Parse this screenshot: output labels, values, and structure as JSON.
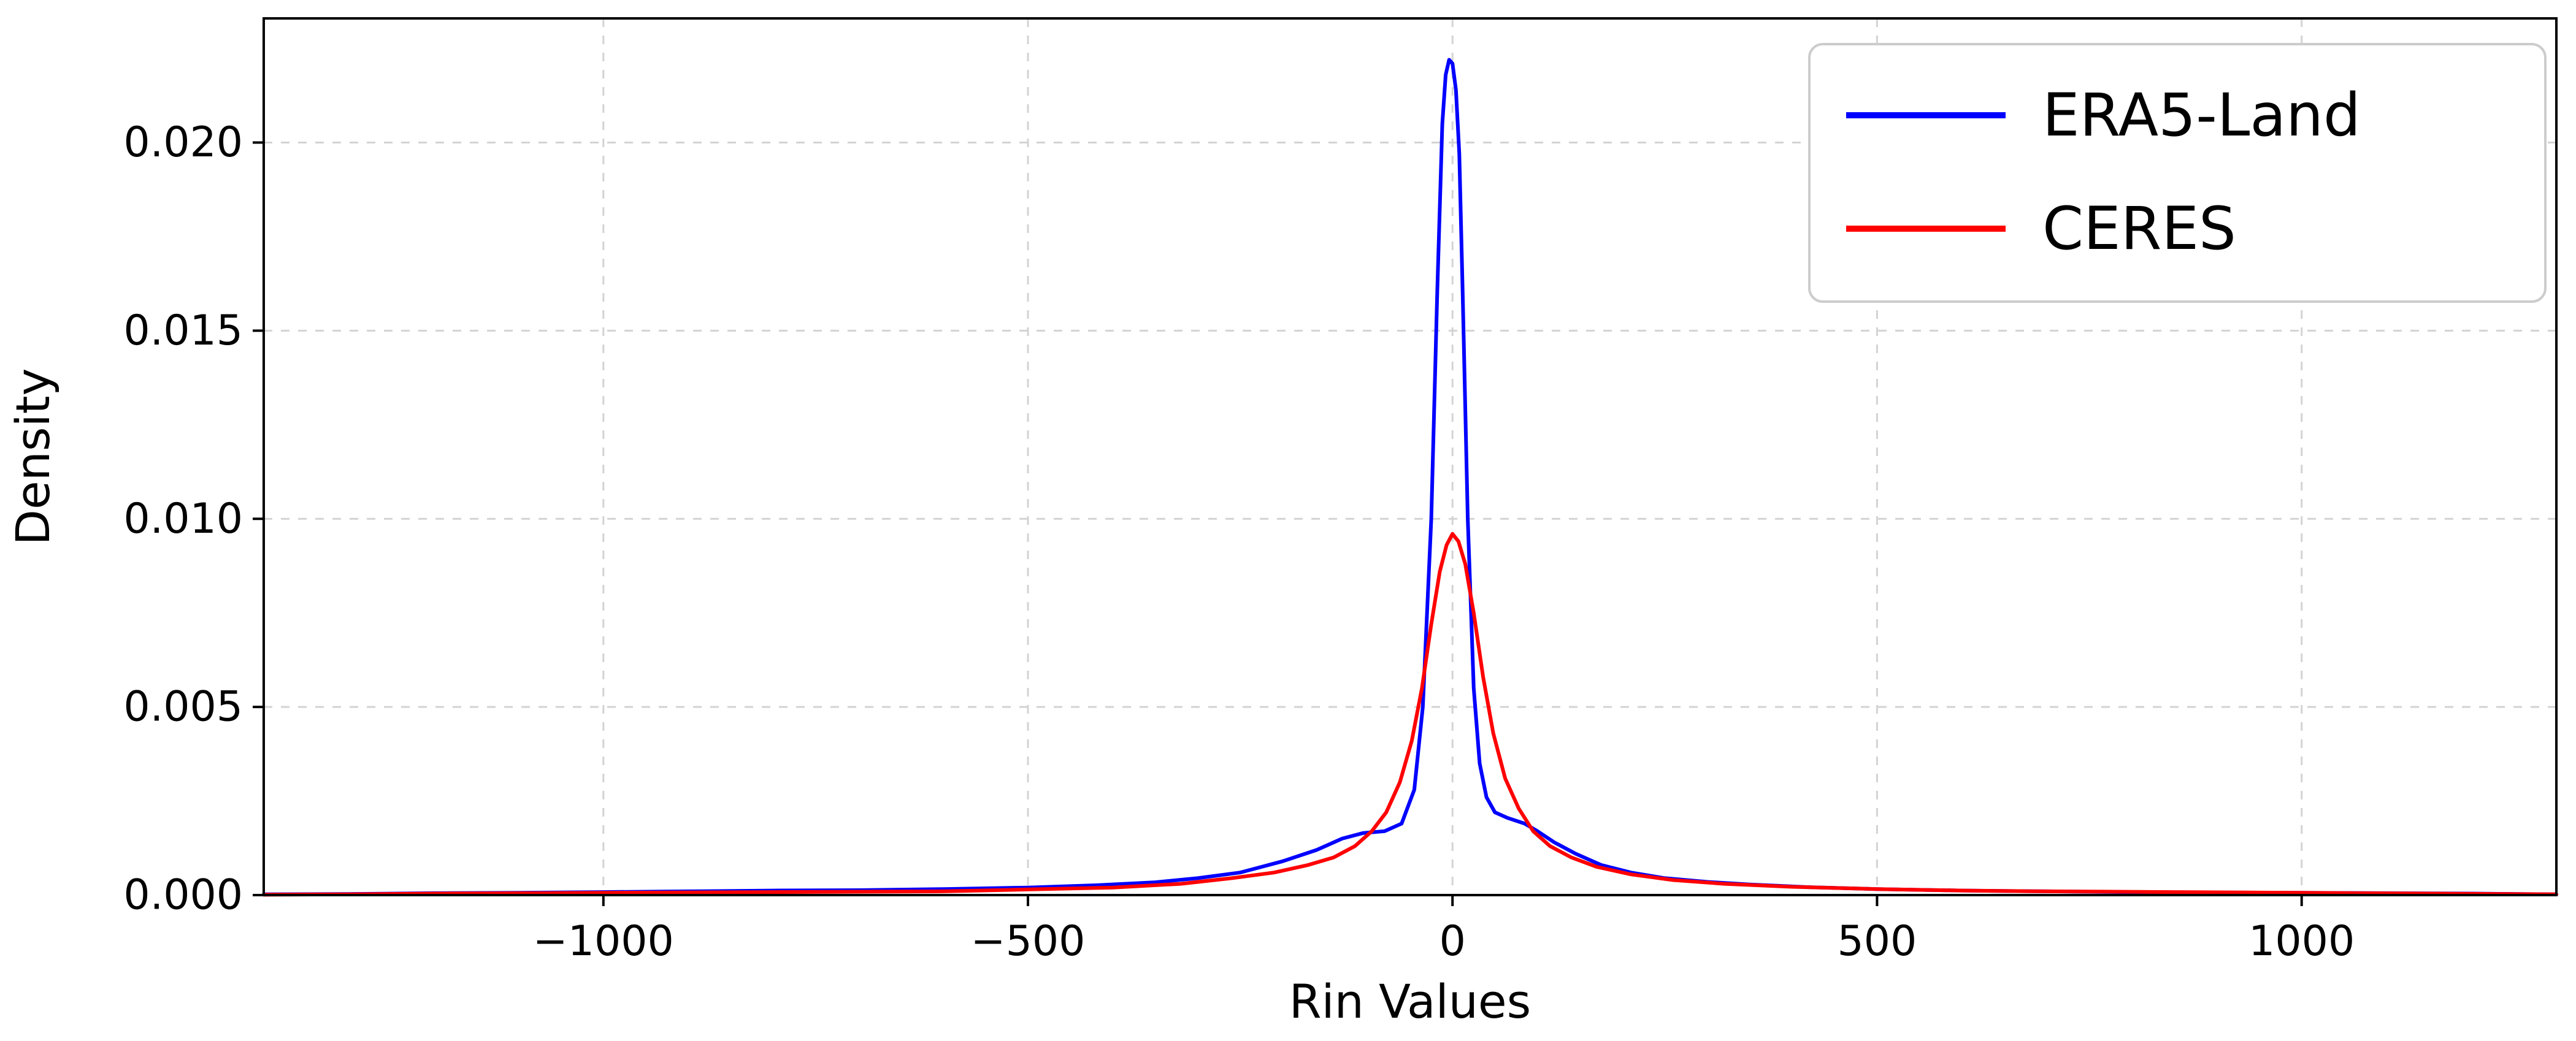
{
  "chart_data": {
    "type": "line",
    "title": "",
    "xlabel": "Rin Values",
    "ylabel": "Density",
    "xlim": [
      -1400,
      1300
    ],
    "ylim": [
      0,
      0.0233
    ],
    "xticks": [
      -1000,
      -500,
      0,
      500,
      1000
    ],
    "xtick_labels": [
      "−1000",
      "−500",
      "0",
      "500",
      "1000"
    ],
    "yticks": [
      0.0,
      0.005,
      0.01,
      0.015,
      0.02
    ],
    "ytick_labels": [
      "0.000",
      "0.005",
      "0.010",
      "0.015",
      "0.020"
    ],
    "grid": true,
    "grid_style": "dashed",
    "grid_color": "#d3d3d3",
    "legend_position": "upper right",
    "series": [
      {
        "name": "ERA5-Land",
        "color": "#0000ff",
        "points": [
          [
            -1400,
            2e-05
          ],
          [
            -1300,
            3e-05
          ],
          [
            -1200,
            5e-05
          ],
          [
            -1100,
            6e-05
          ],
          [
            -1000,
            8e-05
          ],
          [
            -900,
            0.0001
          ],
          [
            -800,
            0.00012
          ],
          [
            -700,
            0.00013
          ],
          [
            -600,
            0.00016
          ],
          [
            -500,
            0.0002
          ],
          [
            -420,
            0.00026
          ],
          [
            -350,
            0.00034
          ],
          [
            -300,
            0.00045
          ],
          [
            -250,
            0.0006
          ],
          [
            -200,
            0.0009
          ],
          [
            -160,
            0.0012
          ],
          [
            -130,
            0.0015
          ],
          [
            -105,
            0.00165
          ],
          [
            -80,
            0.0017
          ],
          [
            -60,
            0.0019
          ],
          [
            -45,
            0.0028
          ],
          [
            -35,
            0.005
          ],
          [
            -25,
            0.01
          ],
          [
            -18,
            0.016
          ],
          [
            -12,
            0.0205
          ],
          [
            -8,
            0.0218
          ],
          [
            -4,
            0.0222
          ],
          [
            0,
            0.0221
          ],
          [
            4,
            0.0214
          ],
          [
            8,
            0.0197
          ],
          [
            12,
            0.016
          ],
          [
            18,
            0.01
          ],
          [
            25,
            0.0055
          ],
          [
            32,
            0.0035
          ],
          [
            40,
            0.0026
          ],
          [
            50,
            0.0022
          ],
          [
            65,
            0.00205
          ],
          [
            85,
            0.0019
          ],
          [
            100,
            0.0017
          ],
          [
            120,
            0.0014
          ],
          [
            145,
            0.0011
          ],
          [
            175,
            0.0008
          ],
          [
            210,
            0.0006
          ],
          [
            250,
            0.00045
          ],
          [
            300,
            0.00035
          ],
          [
            350,
            0.00028
          ],
          [
            420,
            0.00021
          ],
          [
            500,
            0.00016
          ],
          [
            600,
            0.00012
          ],
          [
            700,
            0.0001
          ],
          [
            800,
            8e-05
          ],
          [
            900,
            7e-05
          ],
          [
            1000,
            6e-05
          ],
          [
            1100,
            5e-05
          ],
          [
            1200,
            4e-05
          ],
          [
            1300,
            2e-05
          ]
        ]
      },
      {
        "name": "CERES",
        "color": "#ff0000",
        "points": [
          [
            -1400,
            1e-05
          ],
          [
            -1300,
            2e-05
          ],
          [
            -1200,
            4e-05
          ],
          [
            -1000,
            6e-05
          ],
          [
            -800,
            8e-05
          ],
          [
            -600,
            0.0001
          ],
          [
            -500,
            0.00015
          ],
          [
            -400,
            0.0002
          ],
          [
            -320,
            0.0003
          ],
          [
            -260,
            0.00045
          ],
          [
            -210,
            0.0006
          ],
          [
            -170,
            0.0008
          ],
          [
            -140,
            0.001
          ],
          [
            -115,
            0.0013
          ],
          [
            -95,
            0.0017
          ],
          [
            -78,
            0.0022
          ],
          [
            -62,
            0.003
          ],
          [
            -48,
            0.0041
          ],
          [
            -36,
            0.0055
          ],
          [
            -25,
            0.0072
          ],
          [
            -15,
            0.0086
          ],
          [
            -7,
            0.0093
          ],
          [
            0,
            0.0096
          ],
          [
            7,
            0.0094
          ],
          [
            15,
            0.0088
          ],
          [
            25,
            0.0075
          ],
          [
            36,
            0.0058
          ],
          [
            48,
            0.0043
          ],
          [
            62,
            0.0031
          ],
          [
            78,
            0.0023
          ],
          [
            95,
            0.0017
          ],
          [
            115,
            0.0013
          ],
          [
            140,
            0.001
          ],
          [
            170,
            0.00075
          ],
          [
            210,
            0.00055
          ],
          [
            260,
            0.0004
          ],
          [
            320,
            0.0003
          ],
          [
            400,
            0.00022
          ],
          [
            500,
            0.00016
          ],
          [
            600,
            0.00012
          ],
          [
            700,
            0.0001
          ],
          [
            850,
            8e-05
          ],
          [
            1000,
            6e-05
          ],
          [
            1150,
            4e-05
          ],
          [
            1300,
            2e-05
          ]
        ]
      }
    ],
    "line_width": 6
  },
  "legend": {
    "entries": [
      {
        "label": "ERA5-Land",
        "color": "#0000ff"
      },
      {
        "label": "CERES",
        "color": "#ff0000"
      }
    ]
  }
}
